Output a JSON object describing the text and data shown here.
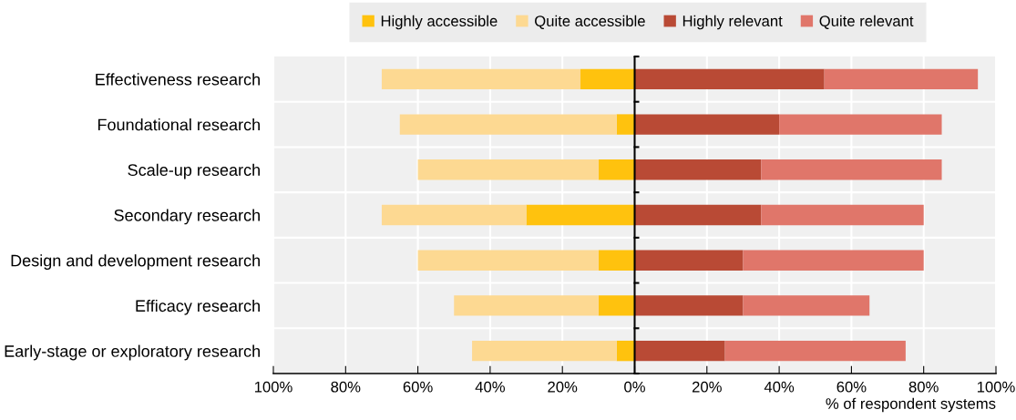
{
  "chart_data": {
    "type": "bar",
    "orientation": "horizontal",
    "stacked": true,
    "categories": [
      "Effectiveness research",
      "Foundational research",
      "Scale-up research",
      "Secondary research",
      "Design and development research",
      "Efficacy research",
      "Early-stage or exploratory research"
    ],
    "series": [
      {
        "name": "Highly accessible",
        "color": "#ffc20e",
        "values": [
          -15,
          -5,
          -10,
          -30,
          -10,
          -10,
          -5
        ]
      },
      {
        "name": "Quite accessible",
        "color": "#fdd992",
        "values": [
          -55,
          -60,
          -50,
          -40,
          -50,
          -40,
          -40
        ]
      },
      {
        "name": "Highly relevant",
        "color": "#b94a35",
        "values": [
          52.5,
          40,
          35,
          35,
          30,
          30,
          25
        ]
      },
      {
        "name": "Quite relevant",
        "color": "#e0766a",
        "values": [
          42.5,
          45,
          50,
          45,
          50,
          35,
          50
        ]
      }
    ],
    "xlim": [
      -100,
      100
    ],
    "xticks": [
      {
        "value": -100,
        "label": "100%"
      },
      {
        "value": -80,
        "label": "80%"
      },
      {
        "value": -60,
        "label": "60%"
      },
      {
        "value": -40,
        "label": "40%"
      },
      {
        "value": -20,
        "label": "20%"
      },
      {
        "value": 0,
        "label": "0%"
      },
      {
        "value": 20,
        "label": "20%"
      },
      {
        "value": 40,
        "label": "40%"
      },
      {
        "value": 60,
        "label": "60%"
      },
      {
        "value": 80,
        "label": "80%"
      },
      {
        "value": 100,
        "label": "100%"
      }
    ],
    "xlabel": "% of respondent systems",
    "grid": true,
    "legend": "top"
  }
}
